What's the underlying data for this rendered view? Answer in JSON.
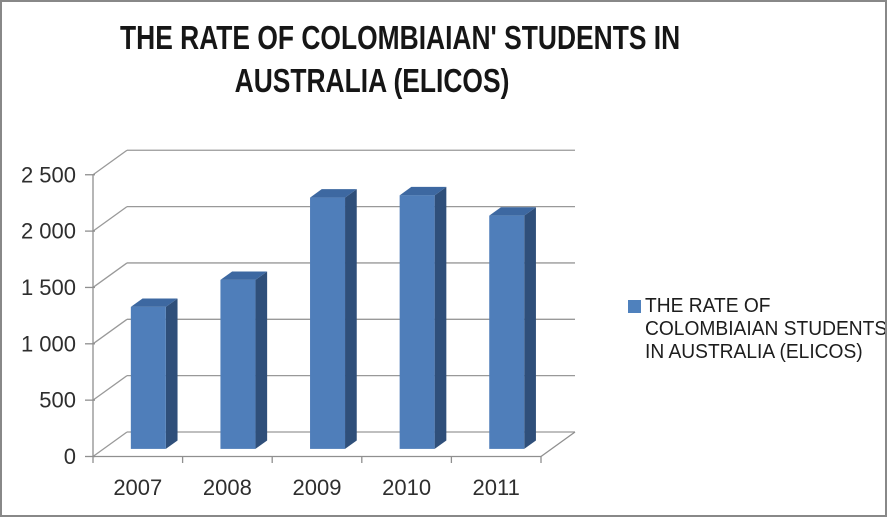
{
  "window": {
    "background": "#ffffff",
    "border_color": "#888888"
  },
  "title": {
    "text": "THE RATE OF COLOMBIAIAN' STUDENTS IN AUSTRALIA (ELICOS)",
    "lines": [
      "THE RATE OF COLOMBIAIAN' STUDENTS IN",
      "AUSTRALIA (ELICOS)"
    ]
  },
  "legend": {
    "label": "THE RATE OF COLOMBIAIAN STUDENTS IN AUSTRALIA (ELICOS)",
    "lines": [
      "THE RATE OF",
      "COLOMBIAIAN STUDENTS",
      "IN AUSTRALIA (ELICOS)"
    ],
    "swatch_icon": "series-color-square-icon",
    "swatch_color": "#4F81BD",
    "position": "right"
  },
  "chart_data": {
    "type": "bar",
    "style": "3d-column",
    "title": "THE RATE OF COLOMBIAIAN' STUDENTS IN AUSTRALIA (ELICOS)",
    "categories": [
      "2007",
      "2008",
      "2009",
      "2010",
      "2011"
    ],
    "series": [
      {
        "name": "THE RATE OF COLOMBIAIAN STUDENTS IN AUSTRALIA (ELICOS)",
        "values": [
          1260,
          1500,
          2230,
          2250,
          2070
        ]
      }
    ],
    "xlabel": "",
    "ylabel": "",
    "ylim": [
      0,
      2500
    ],
    "ytick_step": 500,
    "ytick_labels": [
      "0",
      "500",
      "1 000",
      "1 500",
      "2 000",
      "2 500"
    ],
    "grid": true,
    "legend_position": "right"
  },
  "colors": {
    "bar_front": "#4F7EBA",
    "bar_side": "#2F4F7A",
    "bar_top": "#3D68A1",
    "gridline": "#999999",
    "axis_line": "#8F8F8F",
    "tick_text": "#2e2e2e",
    "title_text": "#161616"
  }
}
